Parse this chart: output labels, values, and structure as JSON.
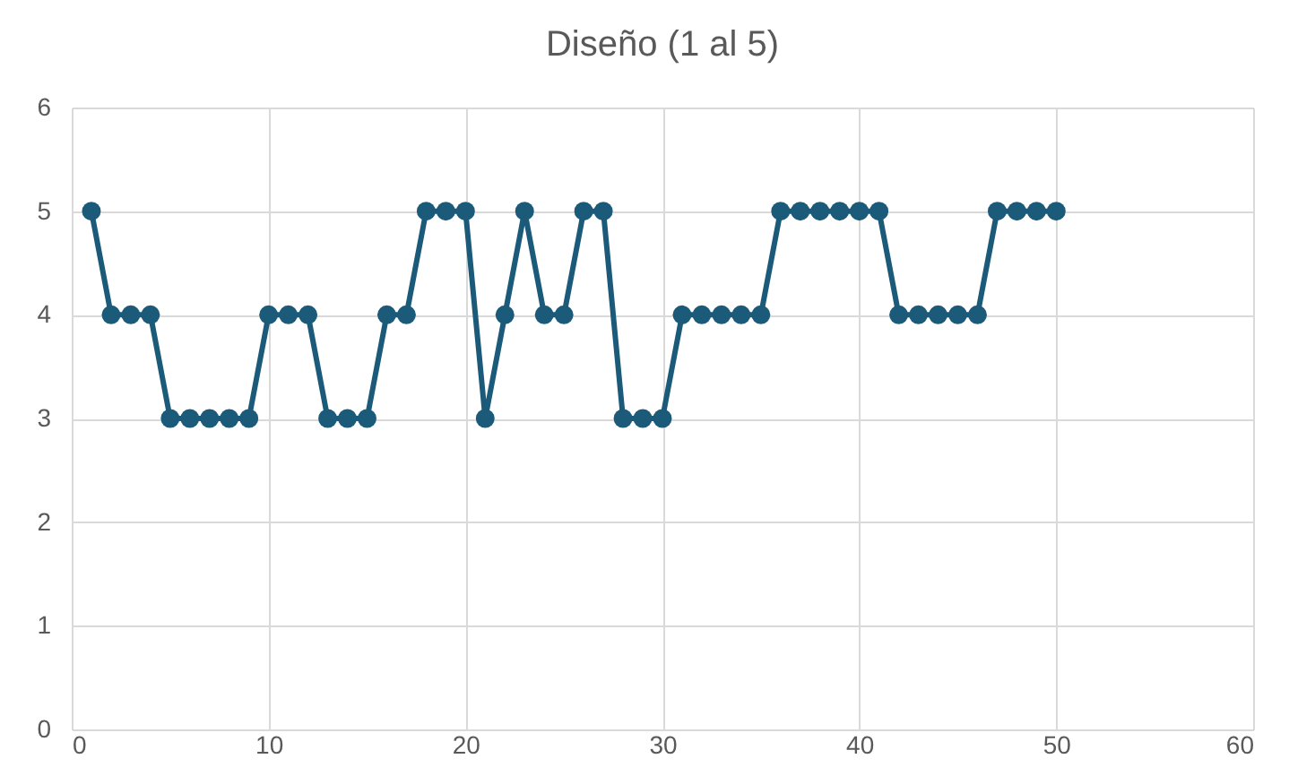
{
  "chart_data": {
    "type": "line",
    "title": "Diseño (1 al 5)",
    "x": [
      1,
      2,
      3,
      4,
      5,
      6,
      7,
      8,
      9,
      10,
      11,
      12,
      13,
      14,
      15,
      16,
      17,
      18,
      19,
      20,
      21,
      22,
      23,
      24,
      25,
      26,
      27,
      28,
      29,
      30,
      31,
      32,
      33,
      34,
      35,
      36,
      37,
      38,
      39,
      40,
      41,
      42,
      43,
      44,
      45,
      46,
      47,
      48,
      49,
      50
    ],
    "series": [
      {
        "color": "#1c5a7a",
        "values": [
          5,
          4,
          4,
          4,
          3,
          3,
          3,
          3,
          3,
          4,
          4,
          4,
          3,
          3,
          3,
          4,
          4,
          5,
          5,
          5,
          3,
          4,
          5,
          4,
          4,
          5,
          5,
          3,
          3,
          3,
          4,
          4,
          4,
          4,
          4,
          5,
          5,
          5,
          5,
          5,
          5,
          4,
          4,
          4,
          4,
          4,
          5,
          5,
          5,
          5
        ]
      }
    ],
    "xlim": [
      0,
      60
    ],
    "xticks": [
      0,
      10,
      20,
      30,
      40,
      50,
      60
    ],
    "ylim": [
      0,
      6
    ],
    "yticks": [
      0,
      1,
      2,
      3,
      4,
      5,
      6
    ],
    "grid": true,
    "marker": "circle",
    "line_style": "solid"
  }
}
